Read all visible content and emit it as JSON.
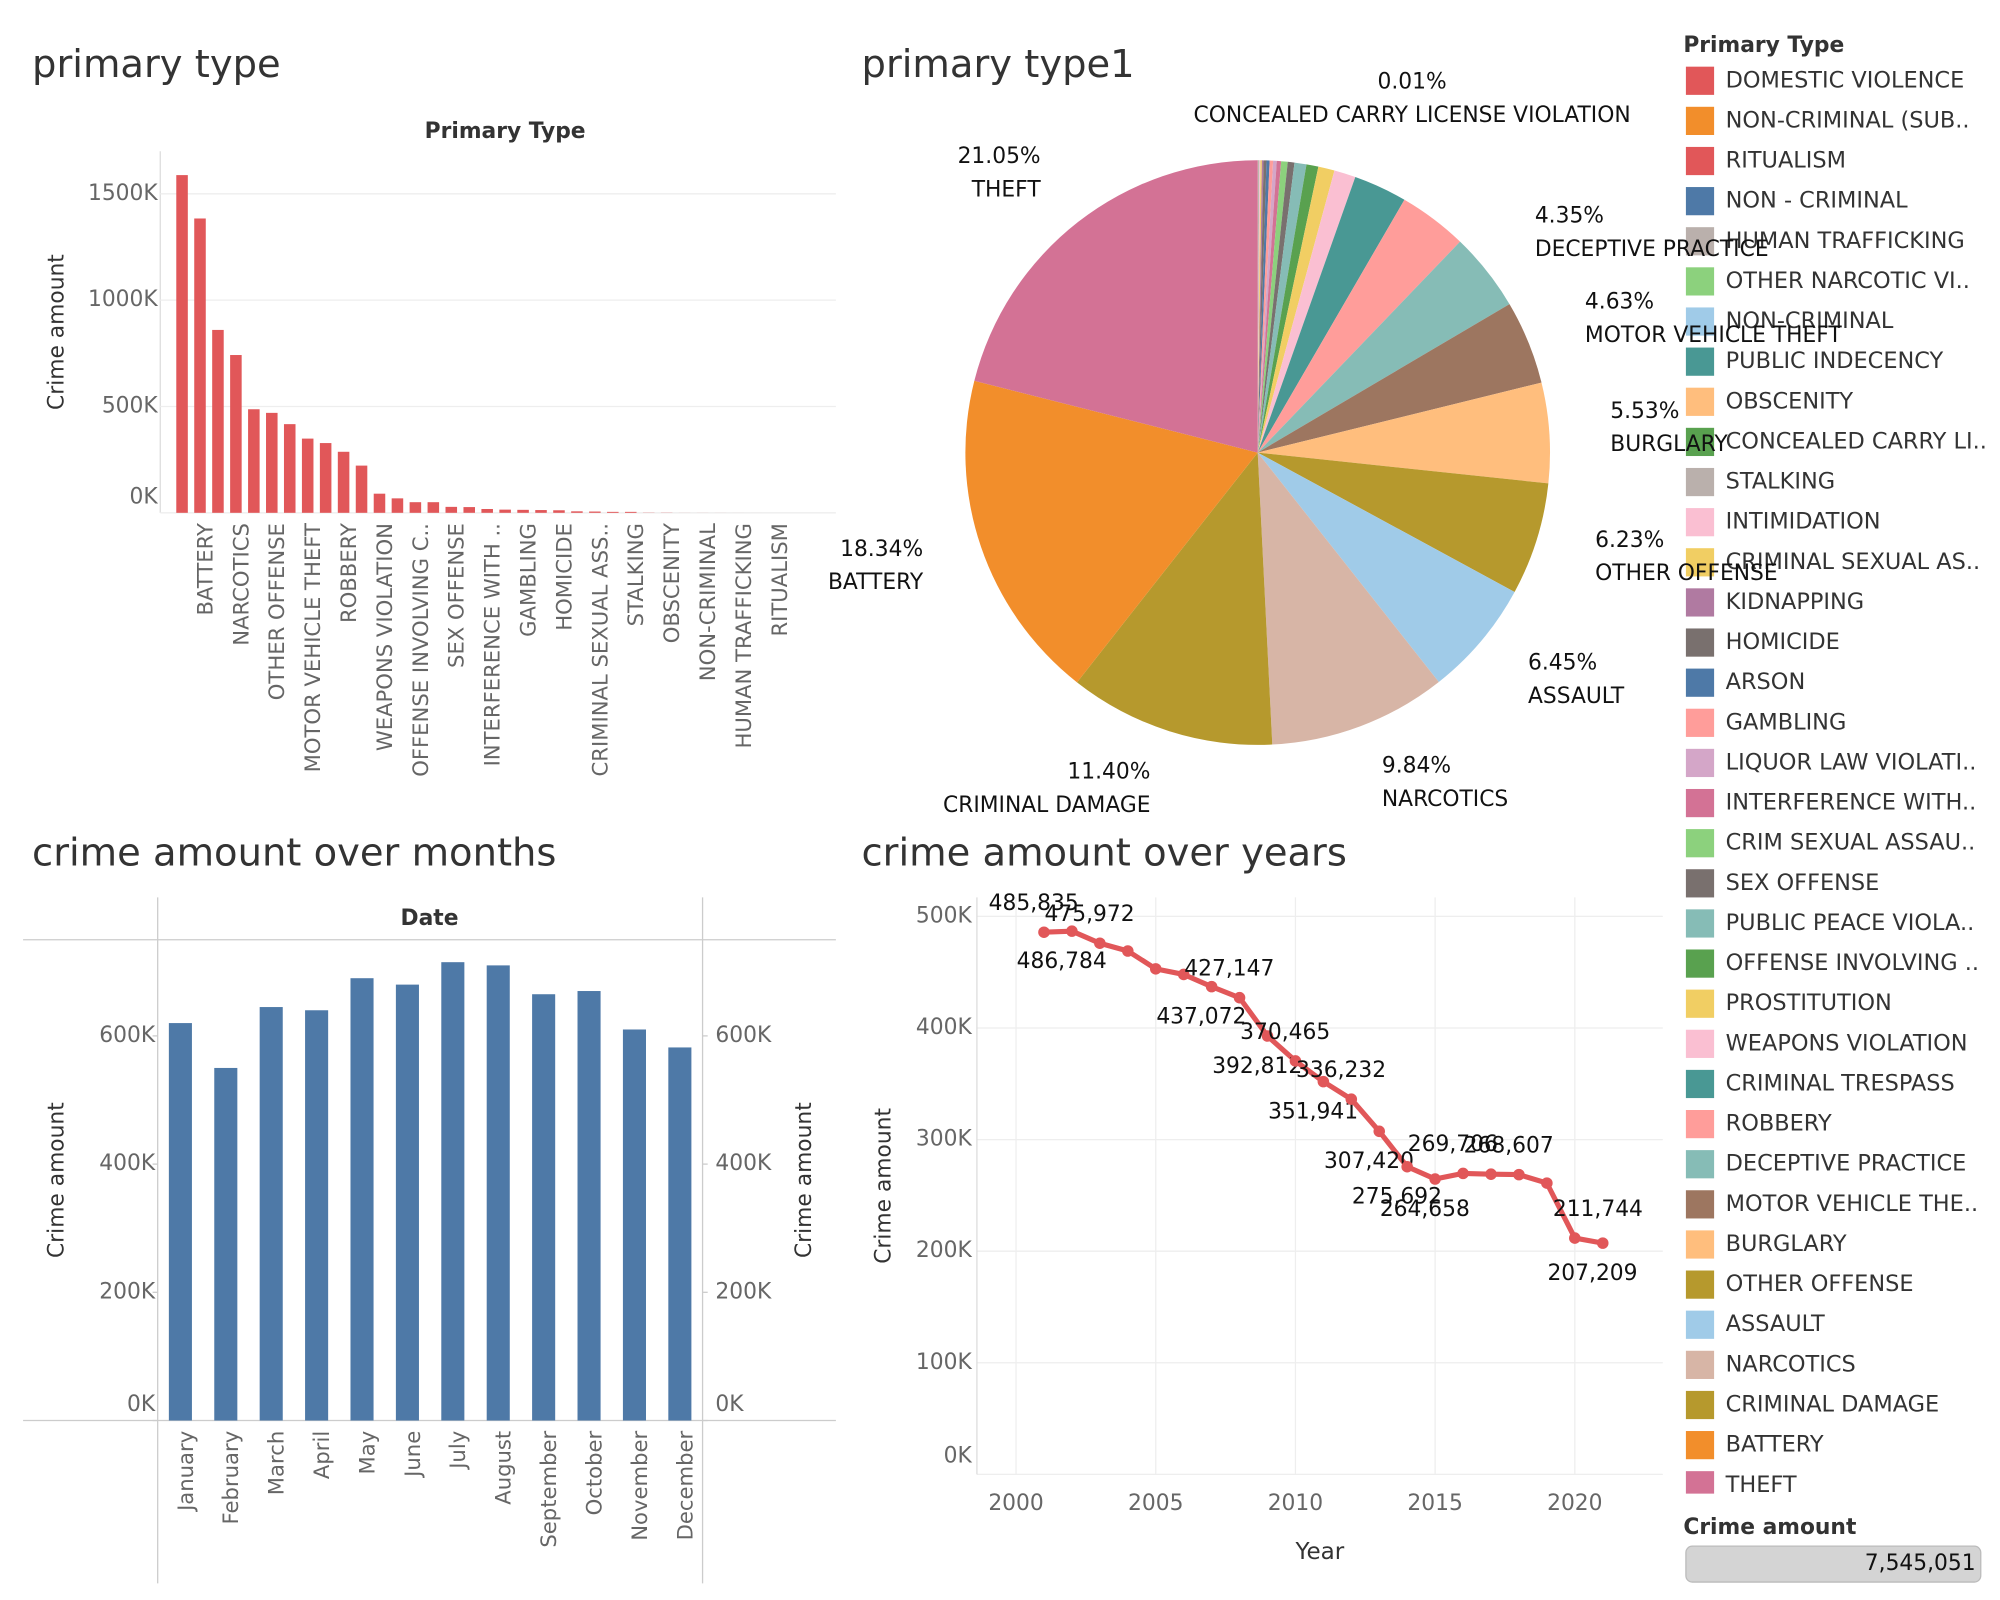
{
  "chart_data": [
    {
      "type": "bar",
      "title": "primary type",
      "header": "Primary Type",
      "y_label": "Crime amount",
      "color": "#e15759",
      "grid": true,
      "categories": [
        null,
        "BATTERY",
        null,
        "NARCOTICS",
        null,
        "OTHER OFFENSE",
        null,
        "MOTOR VEHICLE THEFT",
        null,
        "ROBBERY",
        null,
        "WEAPONS VIOLATION",
        null,
        "OFFENSE INVOLVING C..",
        null,
        "SEX OFFENSE",
        null,
        "INTERFERENCE WITH ..",
        null,
        "GAMBLING",
        null,
        "HOMICIDE",
        null,
        "CRIMINAL SEXUAL ASS..",
        null,
        "STALKING",
        null,
        "OBSCENITY",
        null,
        "NON-CRIMINAL",
        null,
        "HUMAN TRAFFICKING",
        null,
        "RITUALISM"
      ],
      "values": [
        1588000,
        1384000,
        860000,
        742000,
        487000,
        470000,
        417000,
        349000,
        328000,
        287000,
        222000,
        90000,
        68000,
        50000,
        50000,
        28000,
        27000,
        18000,
        15000,
        14000,
        13000,
        12000,
        7000,
        6000,
        4500,
        4500,
        900,
        800,
        200,
        200,
        150,
        80,
        40,
        20
      ],
      "ylim": [
        0,
        1700000
      ],
      "yticks": [
        {
          "value": 0,
          "label": "0K"
        },
        {
          "value": 500000,
          "label": "500K"
        },
        {
          "value": 1000000,
          "label": "1000K"
        },
        {
          "value": 1500000,
          "label": "1500K"
        }
      ]
    },
    {
      "type": "pie",
      "title": "primary type1",
      "legend_title": "Primary Type",
      "categories": [
        "DOMESTIC VIOLENCE",
        "NON-CRIMINAL (SUB..",
        "RITUALISM",
        "NON - CRIMINAL",
        "HUMAN TRAFFICKING",
        "OTHER NARCOTIC VI..",
        "NON-CRIMINAL",
        "PUBLIC INDECENCY",
        "OBSCENITY",
        "CONCEALED CARRY LI..",
        "STALKING",
        "INTIMIDATION",
        "CRIMINAL SEXUAL AS..",
        "KIDNAPPING",
        "HOMICIDE",
        "ARSON",
        "GAMBLING",
        "LIQUOR LAW VIOLATI..",
        "INTERFERENCE WITH..",
        "CRIM SEXUAL ASSAU..",
        "SEX OFFENSE",
        "PUBLIC PEACE VIOLA..",
        "OFFENSE INVOLVING ..",
        "PROSTITUTION",
        "WEAPONS VIOLATION",
        "CRIMINAL TRESPASS",
        "ROBBERY",
        "DECEPTIVE PRACTICE",
        "MOTOR VEHICLE THE..",
        "BURGLARY",
        "OTHER OFFENSE",
        "ASSAULT",
        "NARCOTICS",
        "CRIMINAL DAMAGE",
        "BATTERY",
        "THEFT"
      ],
      "values": [
        0.0001,
        0.0001,
        0.0003,
        0.0005,
        0.001,
        0.002,
        0.003,
        0.003,
        0.01,
        0.01,
        0.06,
        0.06,
        0.08,
        0.09,
        0.16,
        0.17,
        0.19,
        0.2,
        0.24,
        0.36,
        0.37,
        0.66,
        0.66,
        0.9,
        1.19,
        2.95,
        3.8,
        4.35,
        4.63,
        5.53,
        6.23,
        6.45,
        9.84,
        11.4,
        18.34,
        21.05
      ],
      "value_labels": [
        null,
        null,
        null,
        null,
        null,
        null,
        null,
        null,
        null,
        "0.01%",
        null,
        null,
        null,
        null,
        null,
        null,
        null,
        null,
        null,
        null,
        null,
        null,
        null,
        null,
        null,
        null,
        null,
        "4.35%",
        "4.63%",
        "5.53%",
        "6.23%",
        "6.45%",
        "9.84%",
        "11.40%",
        "18.34%",
        "21.05%"
      ],
      "slice_labels": [
        null,
        null,
        null,
        null,
        null,
        null,
        null,
        null,
        null,
        "CONCEALED CARRY LICENSE VIOLATION",
        null,
        null,
        null,
        null,
        null,
        null,
        null,
        null,
        null,
        null,
        null,
        null,
        null,
        null,
        null,
        null,
        null,
        "DECEPTIVE PRACTICE",
        "MOTOR VEHICLE THEFT",
        "BURGLARY",
        "OTHER OFFENSE",
        "ASSAULT",
        "NARCOTICS",
        "CRIMINAL DAMAGE",
        "BATTERY",
        "THEFT"
      ],
      "colors": [
        "#e15759",
        "#f28e2b",
        "#e15759",
        "#4e79a7",
        "#bab0ac",
        "#8cd17d",
        "#a0cbe8",
        "#499894",
        "#ffbe7d",
        "#59a14f",
        "#bab0ac",
        "#fabfd2",
        "#f1ce63",
        "#b07aa1",
        "#79706e",
        "#4e79a7",
        "#ff9d9a",
        "#d4a6c8",
        "#d37295",
        "#8cd17d",
        "#79706e",
        "#86bcb6",
        "#59a14f",
        "#f1ce63",
        "#fabfd2",
        "#499894",
        "#ff9d9a",
        "#86bcb6",
        "#9d7660",
        "#ffbe7d",
        "#b6992d",
        "#a0cbe8",
        "#d7b5a6",
        "#b6992d",
        "#f28e2b",
        "#d37295"
      ]
    },
    {
      "type": "bar",
      "title": "crime amount over months",
      "header": "Date",
      "y_label": "Crime amount",
      "y2_label": "Crime amount",
      "color": "#4e79a7",
      "grid": false,
      "categories": [
        "January",
        "February",
        "March",
        "April",
        "May",
        "June",
        "July",
        "August",
        "September",
        "October",
        "November",
        "December"
      ],
      "values": [
        620000,
        550000,
        645000,
        640000,
        690000,
        680000,
        715000,
        710000,
        665000,
        670000,
        610000,
        582000
      ],
      "ylim": [
        0,
        750000
      ],
      "yticks": [
        {
          "value": 0,
          "label": "0K"
        },
        {
          "value": 200000,
          "label": "200K"
        },
        {
          "value": 400000,
          "label": "400K"
        },
        {
          "value": 600000,
          "label": "600K"
        }
      ],
      "y2lim": [
        0,
        750000
      ],
      "y2ticks": [
        {
          "value": 0,
          "label": "0K"
        },
        {
          "value": 200000,
          "label": "200K"
        },
        {
          "value": 400000,
          "label": "400K"
        },
        {
          "value": 600000,
          "label": "600K"
        }
      ]
    },
    {
      "type": "line",
      "title": "crime amount over years",
      "x_label": "Year",
      "y_label": "Crime amount",
      "color": "#e15759",
      "grid": true,
      "x": [
        2001,
        2002,
        2003,
        2004,
        2005,
        2006,
        2007,
        2008,
        2009,
        2010,
        2011,
        2012,
        2013,
        2014,
        2015,
        2016,
        2017,
        2018,
        2019,
        2020,
        2021
      ],
      "values": [
        485835,
        486784,
        475972,
        469000,
        453000,
        448000,
        437072,
        427147,
        392812,
        370465,
        351941,
        336232,
        307420,
        275692,
        264658,
        269706,
        269000,
        268607,
        261000,
        211744,
        207209
      ],
      "value_labels": [
        "485,835",
        "486,784",
        "475,972",
        null,
        null,
        null,
        "437,072",
        "427,147",
        "392,812",
        "370,465",
        "351,941",
        "336,232",
        "307,420",
        "275,692",
        "264,658",
        "269,706",
        null,
        "268,607",
        null,
        "211,744",
        "207,209"
      ],
      "xlim": [
        1998.6,
        2023.15
      ],
      "xticks": [
        2000,
        2005,
        2010,
        2015,
        2020
      ],
      "ylim": [
        0,
        517000
      ],
      "yticks": [
        {
          "value": 0,
          "label": "0K"
        },
        {
          "value": 100000,
          "label": "100K"
        },
        {
          "value": 200000,
          "label": "200K"
        },
        {
          "value": 300000,
          "label": "300K"
        },
        {
          "value": 400000,
          "label": "400K"
        },
        {
          "value": 500000,
          "label": "500K"
        }
      ]
    }
  ],
  "filter": {
    "label": "Crime amount",
    "value": 7545051,
    "value_label": "7,545,051"
  }
}
